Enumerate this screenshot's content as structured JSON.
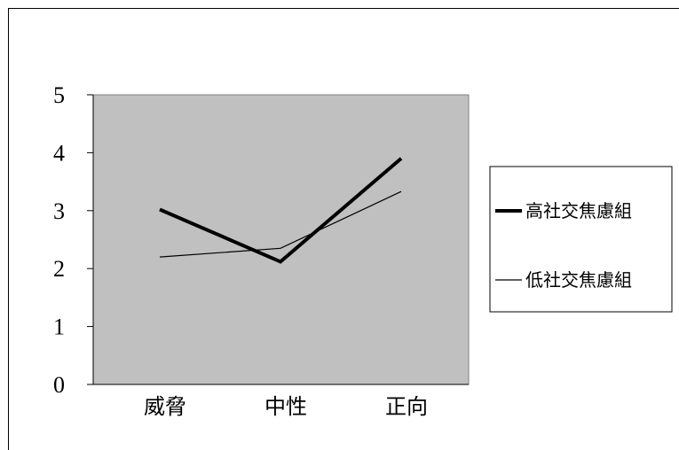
{
  "chart_data": {
    "type": "line",
    "categories": [
      "威脅",
      "中性",
      "正向"
    ],
    "series": [
      {
        "name": "高社交焦慮組",
        "values": [
          3.02,
          2.12,
          3.9
        ],
        "color": "#000000",
        "weight": "thick"
      },
      {
        "name": "低社交焦慮組",
        "values": [
          2.2,
          2.35,
          3.33
        ],
        "color": "#000000",
        "weight": "thin"
      }
    ],
    "yticks": [
      "0",
      "1",
      "2",
      "3",
      "4",
      "5"
    ],
    "ylim": [
      0,
      5
    ],
    "plot_background": "#c0c0c0",
    "grid": false,
    "legend_position": "right"
  }
}
